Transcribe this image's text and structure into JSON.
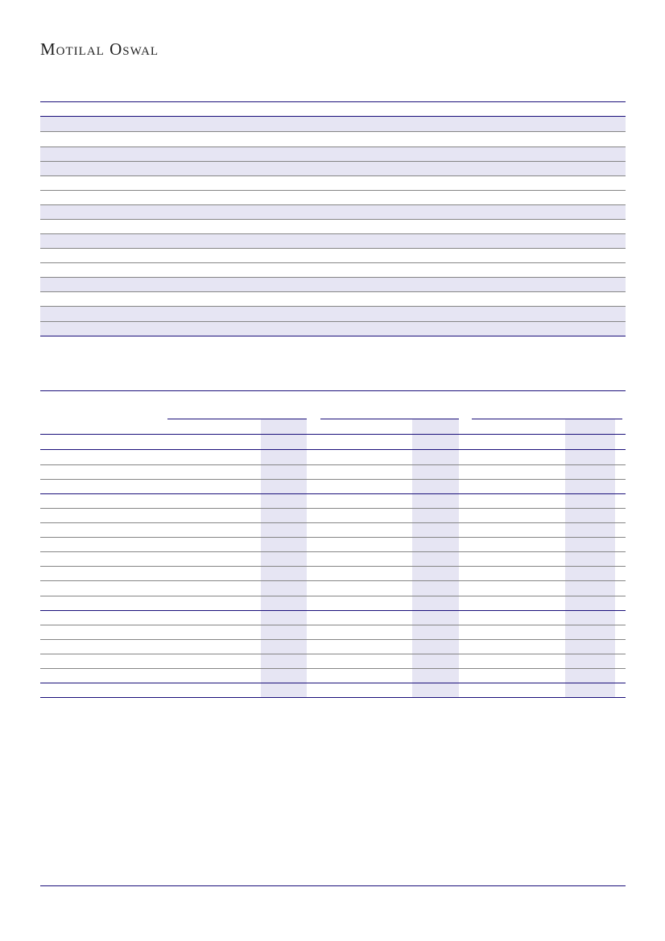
{
  "header": {
    "logo_text": "Motilal Oswal"
  },
  "colors": {
    "rule": "#1a0f7a",
    "divider": "#858585",
    "shade": "#e6e5f3"
  }
}
